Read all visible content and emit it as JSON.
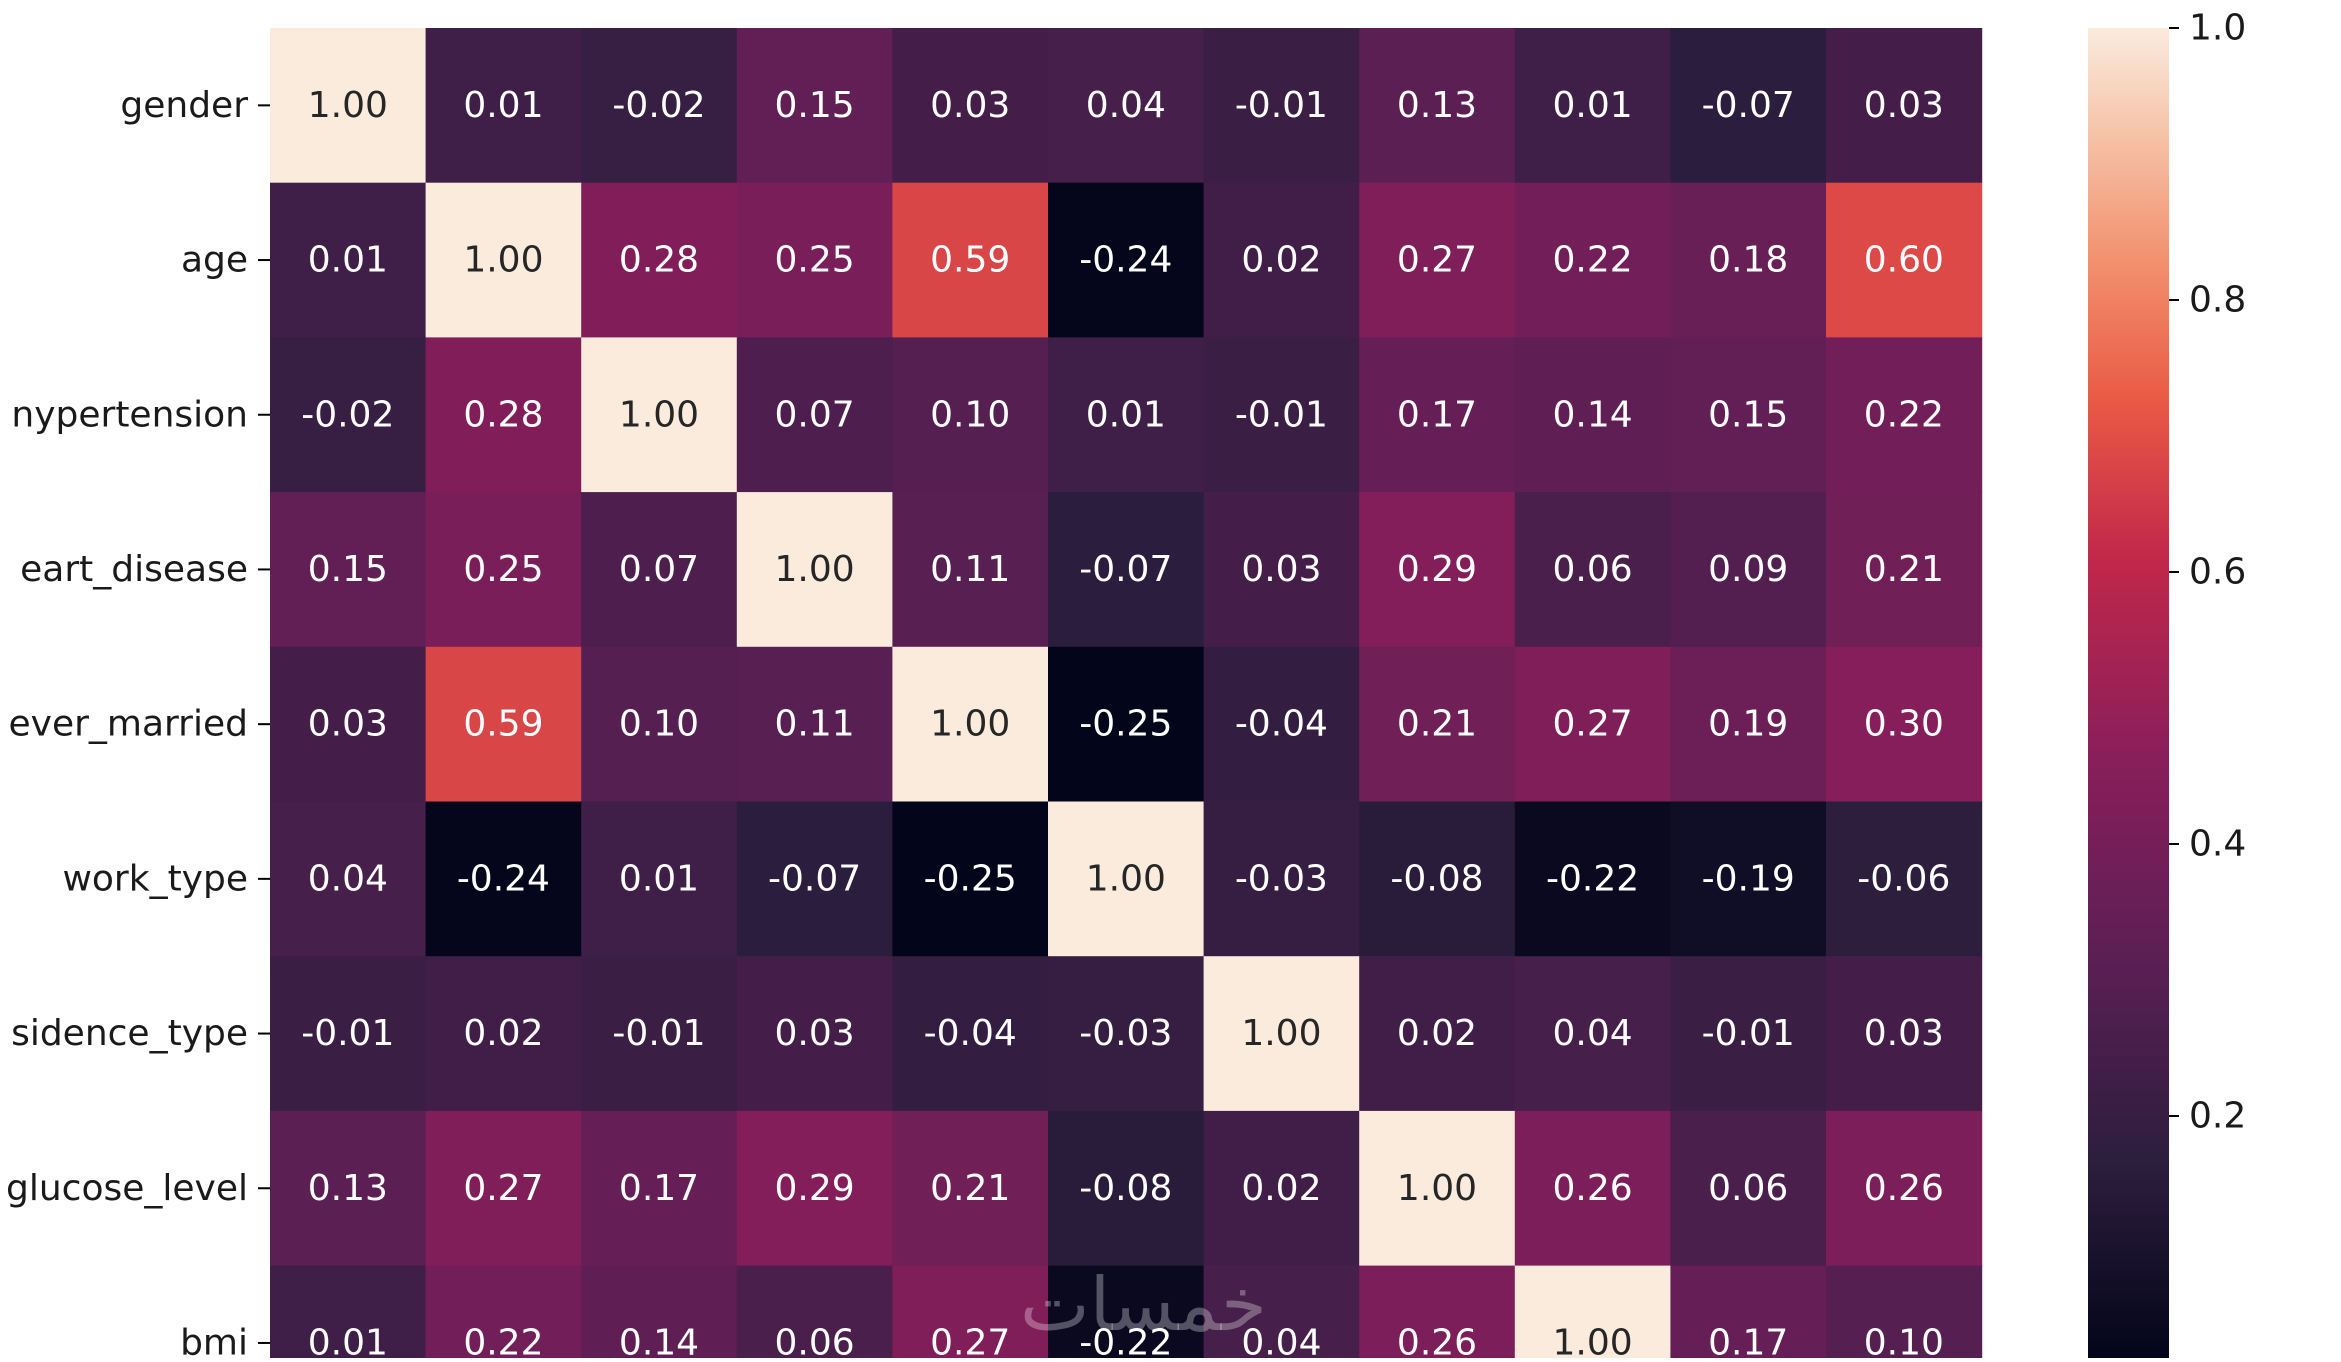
{
  "chart_data": {
    "type": "heatmap",
    "title": "",
    "xlabel": "",
    "ylabel": "",
    "rows": [
      "gender",
      "age",
      "hypertension",
      "heart_disease",
      "ever_married",
      "work_type",
      "Residence_type",
      "avg_glucose_level",
      "bmi"
    ],
    "row_labels_visible": [
      "gender",
      "age",
      "nypertension",
      "eart_disease",
      "ever_married",
      "work_type",
      "sidence_type",
      "glucose_level",
      "bmi"
    ],
    "column_count": 11,
    "values": [
      [
        1.0,
        0.01,
        -0.02,
        0.15,
        0.03,
        0.04,
        -0.01,
        0.13,
        0.01,
        -0.07,
        0.03
      ],
      [
        0.01,
        1.0,
        0.28,
        0.25,
        0.59,
        -0.24,
        0.02,
        0.27,
        0.22,
        0.18,
        0.6
      ],
      [
        -0.02,
        0.28,
        1.0,
        0.07,
        0.1,
        0.01,
        -0.01,
        0.17,
        0.14,
        0.15,
        0.22
      ],
      [
        0.15,
        0.25,
        0.07,
        1.0,
        0.11,
        -0.07,
        0.03,
        0.29,
        0.06,
        0.09,
        0.21
      ],
      [
        0.03,
        0.59,
        0.1,
        0.11,
        1.0,
        -0.25,
        -0.04,
        0.21,
        0.27,
        0.19,
        0.3
      ],
      [
        0.04,
        -0.24,
        0.01,
        -0.07,
        -0.25,
        1.0,
        -0.03,
        -0.08,
        -0.22,
        -0.19,
        -0.06
      ],
      [
        -0.01,
        0.02,
        -0.01,
        0.03,
        -0.04,
        -0.03,
        1.0,
        0.02,
        0.04,
        -0.01,
        0.03
      ],
      [
        0.13,
        0.27,
        0.17,
        0.29,
        0.21,
        -0.08,
        0.02,
        1.0,
        0.26,
        0.06,
        0.26
      ],
      [
        0.01,
        0.22,
        0.14,
        0.06,
        0.27,
        -0.22,
        0.04,
        0.26,
        1.0,
        0.17,
        0.1
      ]
    ],
    "value_format": "0.00",
    "vmin": -0.25,
    "vmax": 1.0,
    "colormap": "rocket",
    "colormap_stops": [
      {
        "v": 0.0,
        "color": "#03051a"
      },
      {
        "v": 0.15,
        "color": "#2d1e3e"
      },
      {
        "v": 0.3,
        "color": "#5b1f54"
      },
      {
        "v": 0.45,
        "color": "#891e5b"
      },
      {
        "v": 0.6,
        "color": "#c1274a"
      },
      {
        "v": 0.72,
        "color": "#e95a45"
      },
      {
        "v": 0.82,
        "color": "#f28e6b"
      },
      {
        "v": 0.92,
        "color": "#f6c3a8"
      },
      {
        "v": 1.0,
        "color": "#faebdd"
      }
    ],
    "colorbar": {
      "ticks": [
        0.2,
        0.4,
        0.6,
        0.8,
        1.0
      ],
      "tick_labels": [
        "0.2",
        "0.4",
        "0.6",
        "0.8",
        "1.0"
      ]
    },
    "annotation_colors": {
      "light_text": "#ffffff",
      "dark_text": "#262626"
    },
    "grid": false,
    "legend": "colorbar-right"
  },
  "watermark": {
    "text": "خمسات"
  }
}
